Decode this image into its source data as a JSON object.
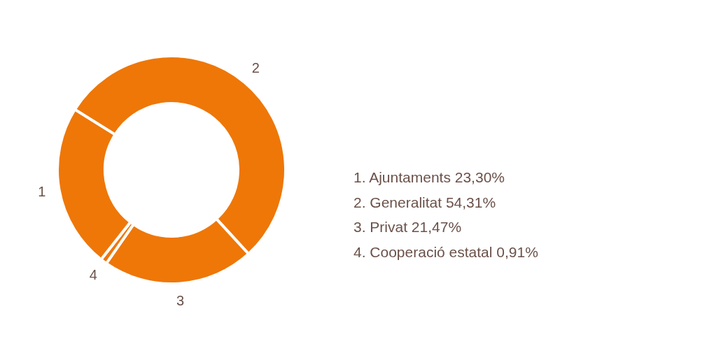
{
  "chart_data": {
    "type": "donut",
    "categories": [
      "1",
      "2",
      "3",
      "4"
    ],
    "values": [
      23.3,
      54.31,
      21.47,
      0.91
    ],
    "colors": [
      "#ee7708",
      "#ee7708",
      "#ee7708",
      "#ee7708"
    ],
    "annotations": [
      "1. Ajuntaments 23,30%",
      "2. Generalitat 54,31%",
      "3. Privat 21,47%",
      "4. Cooperació estatal 0,91%"
    ]
  }
}
